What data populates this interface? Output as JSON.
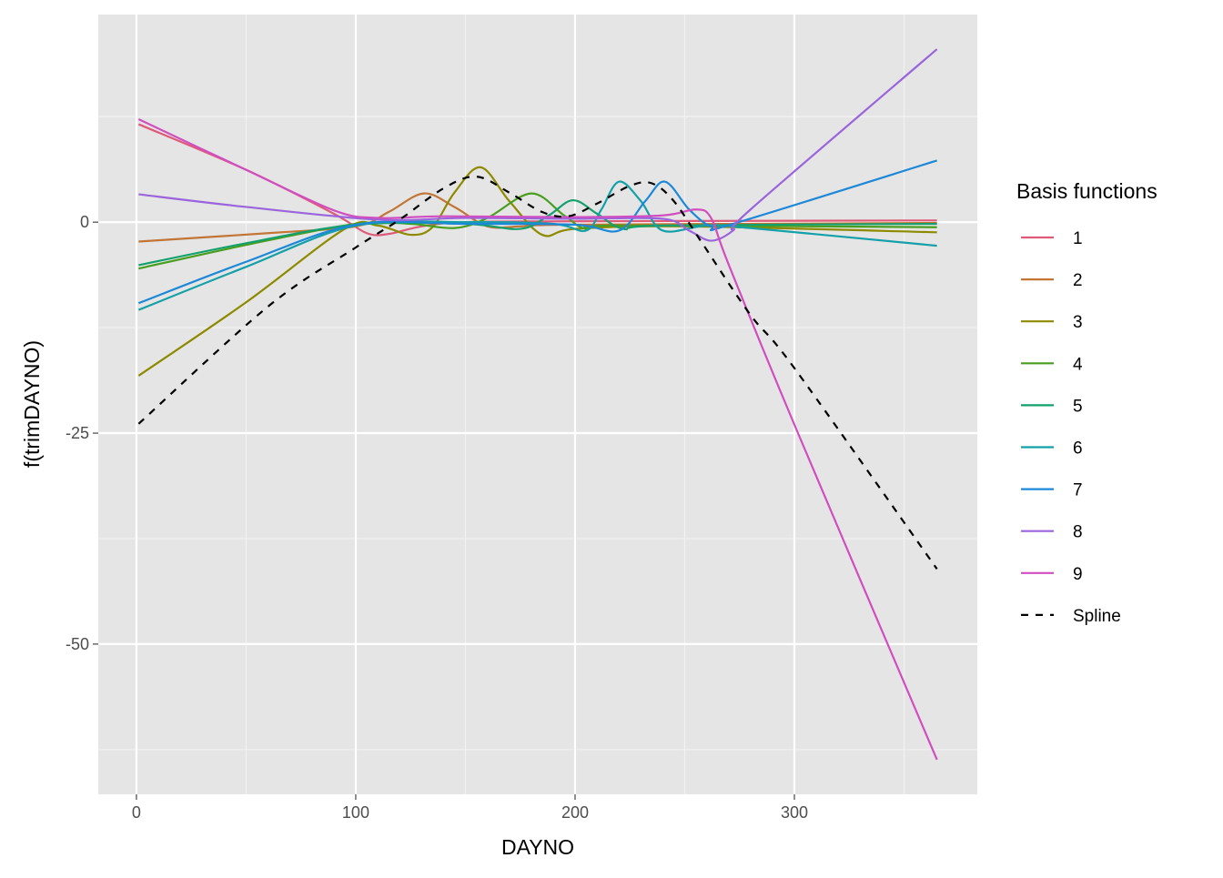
{
  "chart_data": {
    "type": "line",
    "title": "",
    "xlabel": "DAYNO",
    "ylabel": "f(trimDAYNO)",
    "xlim": [
      -17.4,
      383.4
    ],
    "ylim": [
      -67.8,
      24.6
    ],
    "x_ticks": [
      0,
      100,
      200,
      300
    ],
    "y_ticks": [
      -50,
      -25,
      0
    ],
    "grid": true,
    "legend": {
      "title": "Basis functions",
      "placement": "right"
    },
    "series": [
      {
        "name": "1",
        "color": "#DE5A78",
        "dash": false,
        "points": [
          [
            1,
            11.6
          ],
          [
            50,
            6.2
          ],
          [
            90,
            1
          ],
          [
            105,
            -1.3
          ],
          [
            115,
            -1.4
          ],
          [
            130,
            -0.5
          ],
          [
            150,
            0
          ],
          [
            200,
            0.1
          ],
          [
            365,
            0.2
          ]
        ]
      },
      {
        "name": "2",
        "color": "#C27534",
        "dash": false,
        "points": [
          [
            1,
            -2.3
          ],
          [
            60,
            -1.3
          ],
          [
            100,
            -0.5
          ],
          [
            115,
            1.2
          ],
          [
            131,
            3.4
          ],
          [
            145,
            1.8
          ],
          [
            160,
            -0.5
          ],
          [
            175,
            -0.5
          ],
          [
            200,
            -0.3
          ],
          [
            365,
            -0.1
          ]
        ]
      },
      {
        "name": "3",
        "color": "#8E8A00",
        "dash": false,
        "points": [
          [
            1,
            -18.2
          ],
          [
            50,
            -9.5
          ],
          [
            95,
            -0.8
          ],
          [
            110,
            -0.4
          ],
          [
            125,
            -1.5
          ],
          [
            135,
            -0.6
          ],
          [
            145,
            3.5
          ],
          [
            157,
            6.5
          ],
          [
            170,
            2.5
          ],
          [
            185,
            -1.5
          ],
          [
            200,
            -0.8
          ],
          [
            250,
            -0.5
          ],
          [
            365,
            -1.2
          ]
        ]
      },
      {
        "name": "4",
        "color": "#4A9E1F",
        "dash": false,
        "points": [
          [
            1,
            -5.5
          ],
          [
            50,
            -2.7
          ],
          [
            100,
            -0.2
          ],
          [
            125,
            -0.2
          ],
          [
            145,
            -0.7
          ],
          [
            160,
            0.5
          ],
          [
            180,
            3.4
          ],
          [
            195,
            0.8
          ],
          [
            205,
            -0.8
          ],
          [
            220,
            -0.4
          ],
          [
            365,
            -0.6
          ]
        ]
      },
      {
        "name": "5",
        "color": "#14A06D",
        "dash": false,
        "points": [
          [
            1,
            -5.1
          ],
          [
            50,
            -2.5
          ],
          [
            100,
            -0.3
          ],
          [
            150,
            -0.2
          ],
          [
            175,
            -0.8
          ],
          [
            188,
            0.8
          ],
          [
            199,
            2.6
          ],
          [
            210,
            1
          ],
          [
            222,
            -0.8
          ],
          [
            240,
            -0.4
          ],
          [
            365,
            -0.2
          ]
        ]
      },
      {
        "name": "6",
        "color": "#14A0A8",
        "dash": false,
        "points": [
          [
            1,
            -10.4
          ],
          [
            50,
            -5.3
          ],
          [
            100,
            -0.4
          ],
          [
            150,
            0
          ],
          [
            190,
            -0.2
          ],
          [
            205,
            -1
          ],
          [
            212,
            1.5
          ],
          [
            220,
            4.8
          ],
          [
            230,
            2.5
          ],
          [
            240,
            -1
          ],
          [
            260,
            -0.4
          ],
          [
            280,
            -0.7
          ],
          [
            365,
            -2.8
          ]
        ]
      },
      {
        "name": "7",
        "color": "#1D88D8",
        "dash": false,
        "points": [
          [
            1,
            -9.6
          ],
          [
            50,
            -4.7
          ],
          [
            100,
            -0.3
          ],
          [
            150,
            -0.2
          ],
          [
            200,
            -0.3
          ],
          [
            220,
            -1
          ],
          [
            232,
            2.5
          ],
          [
            241,
            4.8
          ],
          [
            252,
            1.5
          ],
          [
            262,
            -0.5
          ],
          [
            272,
            -0.2
          ],
          [
            365,
            7.3
          ]
        ]
      },
      {
        "name": "8",
        "color": "#9A64DD",
        "dash": false,
        "points": [
          [
            1,
            3.3
          ],
          [
            50,
            1.8
          ],
          [
            110,
            0.3
          ],
          [
            150,
            0.5
          ],
          [
            200,
            0.4
          ],
          [
            240,
            0.4
          ],
          [
            252,
            -1
          ],
          [
            262,
            -2.2
          ],
          [
            272,
            -1
          ],
          [
            280,
            1.5
          ],
          [
            365,
            20.5
          ]
        ]
      },
      {
        "name": "9",
        "color": "#D14EC0",
        "dash": false,
        "points": [
          [
            1,
            12.2
          ],
          [
            50,
            6.2
          ],
          [
            90,
            1.4
          ],
          [
            110,
            0.5
          ],
          [
            140,
            0.7
          ],
          [
            200,
            0.6
          ],
          [
            240,
            0.8
          ],
          [
            255,
            1.5
          ],
          [
            262,
            0.5
          ],
          [
            270,
            -5
          ],
          [
            300,
            -24
          ],
          [
            365,
            -63.7
          ]
        ]
      },
      {
        "name": "Spline",
        "color": "#000000",
        "dash": true,
        "points": [
          [
            1,
            -23.9
          ],
          [
            60,
            -10
          ],
          [
            100,
            -3
          ],
          [
            120,
            0.3
          ],
          [
            140,
            4
          ],
          [
            155,
            5.4
          ],
          [
            170,
            3.5
          ],
          [
            185,
            1.2
          ],
          [
            197,
            0.7
          ],
          [
            210,
            2.2
          ],
          [
            225,
            4.3
          ],
          [
            235,
            4.6
          ],
          [
            245,
            2.5
          ],
          [
            258,
            -2.5
          ],
          [
            280,
            -11
          ],
          [
            300,
            -17.3
          ],
          [
            365,
            -41.1
          ]
        ]
      }
    ]
  }
}
